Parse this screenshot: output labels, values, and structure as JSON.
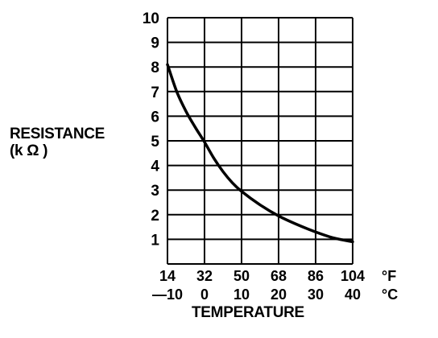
{
  "chart_data": {
    "type": "line",
    "ylabel": [
      "RESISTANCE",
      "(k Ω )"
    ],
    "xlabel": "TEMPERATURE",
    "ylim": [
      0,
      10
    ],
    "yticks": [
      "1",
      "2",
      "3",
      "4",
      "5",
      "6",
      "7",
      "8",
      "9",
      "10"
    ],
    "xlim_c": [
      -10,
      40
    ],
    "xticks_f": [
      "14",
      "32",
      "50",
      "68",
      "86",
      "104"
    ],
    "xticks_c": [
      "—10",
      "0",
      "10",
      "20",
      "30",
      "40"
    ],
    "unit_f": "°F",
    "unit_c": "°C",
    "grid": true,
    "series": [
      {
        "x": [
          -10,
          -7.5,
          -5,
          -2.5,
          0,
          2.5,
          5,
          7.5,
          10,
          15,
          20,
          25,
          30,
          35,
          40
        ],
        "values": [
          8.1,
          7.0,
          6.2,
          5.55,
          4.95,
          4.3,
          3.75,
          3.3,
          2.95,
          2.4,
          1.95,
          1.6,
          1.3,
          1.05,
          0.9
        ]
      }
    ]
  }
}
